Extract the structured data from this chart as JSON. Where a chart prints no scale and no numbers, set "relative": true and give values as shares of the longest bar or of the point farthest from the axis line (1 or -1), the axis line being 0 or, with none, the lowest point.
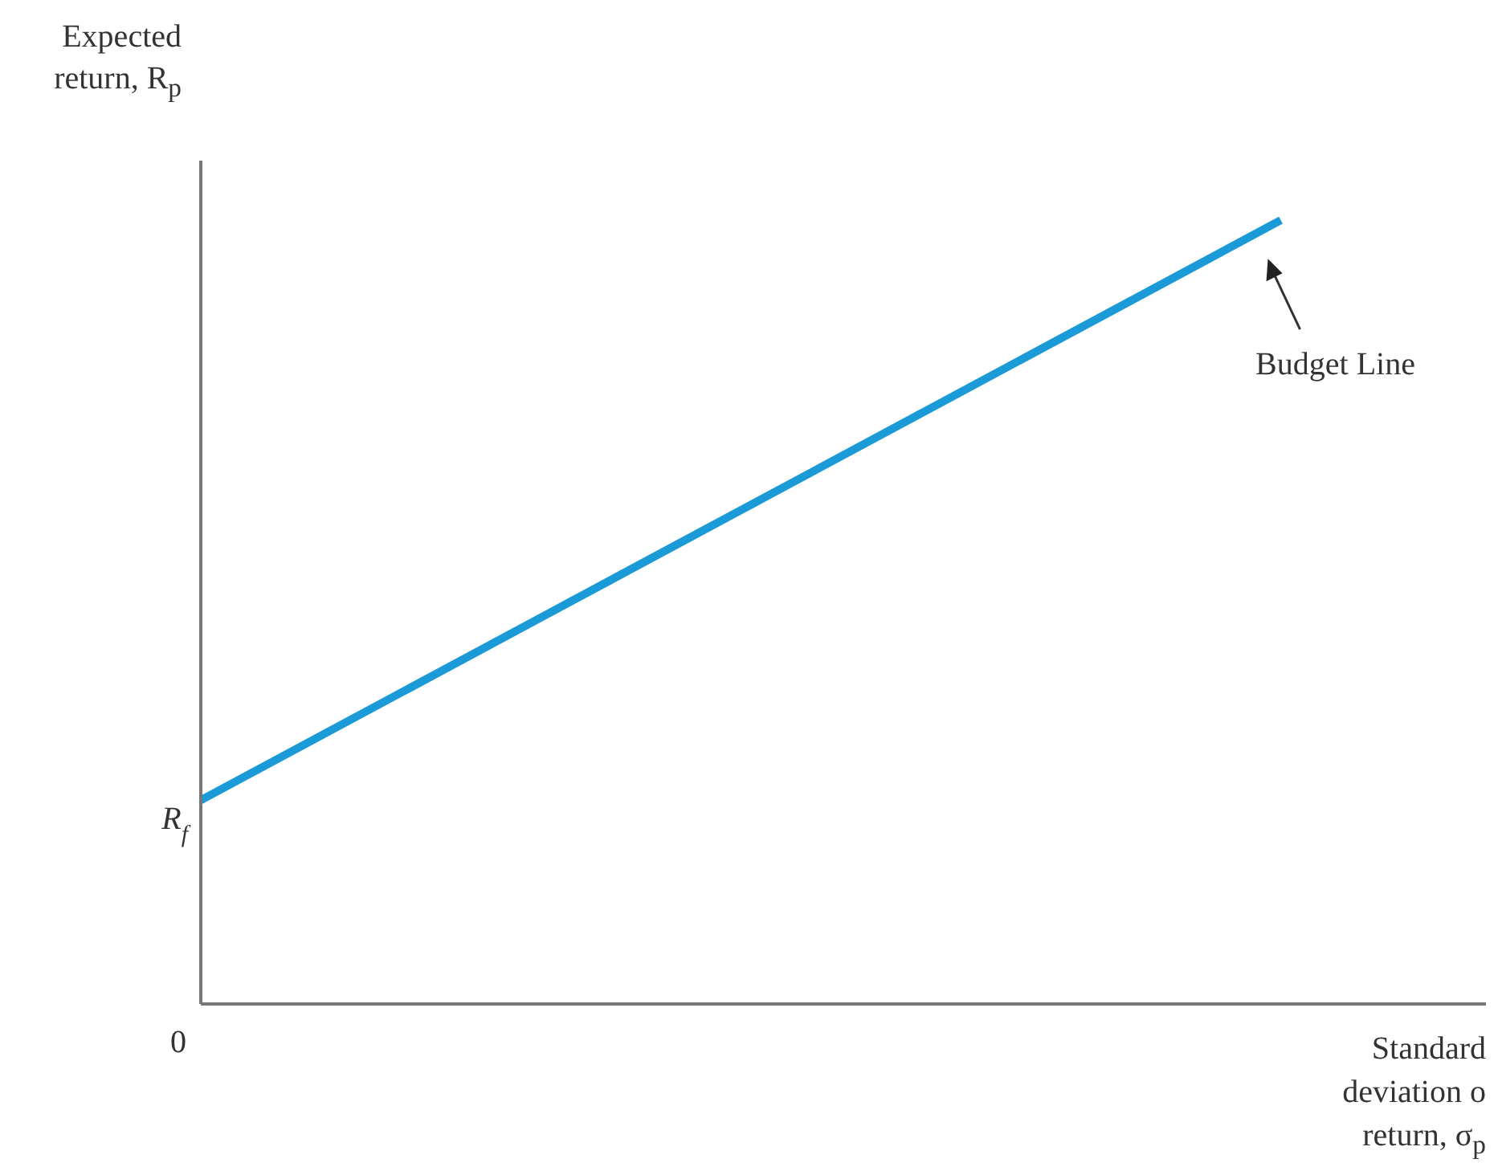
{
  "chart_data": {
    "type": "line",
    "relative": true,
    "xlabel": "Standard deviation o return, σ$_{p}$",
    "ylabel": "Expected return, R$_{p}$",
    "categories": [
      null,
      null
    ],
    "series": [
      {
        "name": "Budget Line",
        "color": "#1a9ad6",
        "values": [
          0.26,
          1
        ]
      }
    ],
    "annotations": [
      "R$_{f}$",
      "0"
    ],
    "grid": false,
    "legend": false,
    "marker": "none"
  }
}
